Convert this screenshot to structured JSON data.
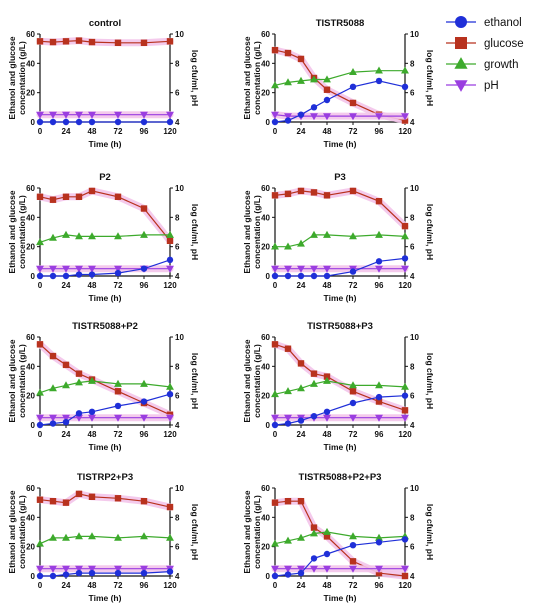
{
  "colors": {
    "ethanol": "#1f2fd8",
    "glucose": "#b8321e",
    "growth": "#3daa2c",
    "pH": "#9a3ee0",
    "error_band": "#f3c4ea"
  },
  "legend": {
    "items": [
      {
        "label": "ethanol",
        "marker": "circle",
        "color": "#1f2fd8"
      },
      {
        "label": "glucose",
        "marker": "square",
        "color": "#b8321e"
      },
      {
        "label": "growth",
        "marker": "triangle-up",
        "color": "#3daa2c"
      },
      {
        "label": "pH",
        "marker": "triangle-down",
        "color": "#9a3ee0"
      }
    ]
  },
  "chart_data": [
    {
      "type": "line",
      "title": "control",
      "xlabel": "Time (h)",
      "ylabel": "Ethanol and glucose concentation (g/L)",
      "y2label": "log cfu/ml, pH",
      "x": [
        0,
        12,
        24,
        36,
        48,
        72,
        96,
        120
      ],
      "xticks": [
        0,
        24,
        48,
        72,
        96,
        120
      ],
      "xlim": [
        0,
        120
      ],
      "yticks": [
        0,
        20,
        40,
        60
      ],
      "ylim": [
        0,
        60
      ],
      "y2ticks": [
        4,
        6,
        8,
        10
      ],
      "y2lim": [
        4,
        10
      ],
      "series": [
        {
          "name": "ethanol",
          "axis": "left",
          "values": [
            0,
            0,
            0,
            0,
            0,
            0,
            0,
            0
          ]
        },
        {
          "name": "glucose",
          "axis": "left",
          "values": [
            55,
            54.5,
            55,
            55.5,
            54.5,
            54,
            54,
            55
          ]
        },
        {
          "name": "growth",
          "axis": "right",
          "values": [
            null,
            null,
            null,
            null,
            null,
            null,
            null,
            null
          ]
        },
        {
          "name": "pH",
          "axis": "right",
          "values": [
            4.5,
            4.5,
            4.5,
            4.5,
            4.5,
            4.5,
            4.5,
            4.5
          ]
        }
      ]
    },
    {
      "type": "line",
      "title": "TISTR5088",
      "xlabel": "Time (h)",
      "ylabel": "Ethanol and glucose concentation (g/L)",
      "y2label": "log cfu/ml, pH",
      "x": [
        0,
        12,
        24,
        36,
        48,
        72,
        96,
        120
      ],
      "xticks": [
        0,
        24,
        48,
        72,
        96,
        120
      ],
      "xlim": [
        0,
        120
      ],
      "yticks": [
        0,
        20,
        40,
        60
      ],
      "ylim": [
        0,
        60
      ],
      "y2ticks": [
        4,
        6,
        8,
        10
      ],
      "y2lim": [
        4,
        10
      ],
      "series": [
        {
          "name": "ethanol",
          "axis": "left",
          "values": [
            0,
            1,
            5,
            10,
            15,
            24,
            28,
            24
          ]
        },
        {
          "name": "glucose",
          "axis": "left",
          "values": [
            49,
            47,
            43,
            30,
            22,
            13,
            5,
            1
          ]
        },
        {
          "name": "growth",
          "axis": "right",
          "values": [
            6.5,
            6.7,
            6.8,
            6.9,
            6.9,
            7.4,
            7.5,
            7.5
          ]
        },
        {
          "name": "pH",
          "axis": "right",
          "values": [
            4.5,
            4.4,
            4.4,
            4.4,
            4.4,
            4.4,
            4.4,
            4.4
          ]
        }
      ]
    },
    {
      "type": "line",
      "title": "P2",
      "xlabel": "Time (h)",
      "ylabel": "Ethanol and glucose concentation (g/L)",
      "y2label": "log cfu/ml, pH",
      "x": [
        0,
        12,
        24,
        36,
        48,
        72,
        96,
        120
      ],
      "xticks": [
        0,
        24,
        48,
        72,
        96,
        120
      ],
      "xlim": [
        0,
        120
      ],
      "yticks": [
        0,
        20,
        40,
        60
      ],
      "ylim": [
        0,
        60
      ],
      "y2ticks": [
        4,
        6,
        8,
        10
      ],
      "y2lim": [
        4,
        10
      ],
      "series": [
        {
          "name": "ethanol",
          "axis": "left",
          "values": [
            0,
            0,
            0,
            1,
            1,
            2,
            5,
            11
          ]
        },
        {
          "name": "glucose",
          "axis": "left",
          "values": [
            54,
            52,
            54,
            54,
            58,
            54,
            46,
            24
          ]
        },
        {
          "name": "growth",
          "axis": "right",
          "values": [
            6.3,
            6.6,
            6.8,
            6.7,
            6.7,
            6.7,
            6.8,
            6.8
          ]
        },
        {
          "name": "pH",
          "axis": "right",
          "values": [
            4.5,
            4.5,
            4.5,
            4.5,
            4.5,
            4.5,
            4.5,
            4.5
          ]
        }
      ]
    },
    {
      "type": "line",
      "title": "P3",
      "xlabel": "Time (h)",
      "ylabel": "Ethanol and glucose concentation (g/L)",
      "y2label": "log cfu/ml, pH",
      "x": [
        0,
        12,
        24,
        36,
        48,
        72,
        96,
        120
      ],
      "xticks": [
        0,
        24,
        48,
        72,
        96,
        120
      ],
      "xlim": [
        0,
        120
      ],
      "yticks": [
        0,
        20,
        40,
        60
      ],
      "ylim": [
        0,
        60
      ],
      "y2ticks": [
        4,
        6,
        8,
        10
      ],
      "y2lim": [
        4,
        10
      ],
      "series": [
        {
          "name": "ethanol",
          "axis": "left",
          "values": [
            0,
            0,
            0,
            0,
            0,
            3,
            10,
            12
          ]
        },
        {
          "name": "glucose",
          "axis": "left",
          "values": [
            55,
            56,
            58,
            57,
            55,
            58,
            51,
            34
          ]
        },
        {
          "name": "growth",
          "axis": "right",
          "values": [
            6.0,
            6.0,
            6.2,
            6.8,
            6.8,
            6.7,
            6.8,
            6.7
          ]
        },
        {
          "name": "pH",
          "axis": "right",
          "values": [
            4.5,
            4.5,
            4.5,
            4.5,
            4.5,
            4.5,
            4.5,
            4.5
          ]
        }
      ]
    },
    {
      "type": "line",
      "title": "TISTR5088+P2",
      "xlabel": "Time (h)",
      "ylabel": "Ethanol and glucose concentation (g/L)",
      "y2label": "log cfu/ml, pH",
      "x": [
        0,
        12,
        24,
        36,
        48,
        72,
        96,
        120
      ],
      "xticks": [
        0,
        24,
        48,
        72,
        96,
        120
      ],
      "xlim": [
        0,
        120
      ],
      "yticks": [
        0,
        20,
        40,
        60
      ],
      "ylim": [
        0,
        60
      ],
      "y2ticks": [
        4,
        6,
        8,
        10
      ],
      "y2lim": [
        4,
        10
      ],
      "series": [
        {
          "name": "ethanol",
          "axis": "left",
          "values": [
            0,
            1,
            2,
            8,
            9,
            13,
            16,
            21
          ]
        },
        {
          "name": "glucose",
          "axis": "left",
          "values": [
            55,
            47,
            41,
            35,
            31,
            23,
            15,
            7
          ]
        },
        {
          "name": "growth",
          "axis": "right",
          "values": [
            6.2,
            6.5,
            6.7,
            6.9,
            7.0,
            6.8,
            6.8,
            6.6
          ]
        },
        {
          "name": "pH",
          "axis": "right",
          "values": [
            4.5,
            4.5,
            4.5,
            4.5,
            4.5,
            4.5,
            4.5,
            4.5
          ]
        }
      ]
    },
    {
      "type": "line",
      "title": "TISTR5088+P3",
      "xlabel": "Time (h)",
      "ylabel": "Ethanol and glucose concentation (g/L)",
      "y2label": "log cfu/ml, pH",
      "x": [
        0,
        12,
        24,
        36,
        48,
        72,
        96,
        120
      ],
      "xticks": [
        0,
        24,
        48,
        72,
        96,
        120
      ],
      "xlim": [
        0,
        120
      ],
      "yticks": [
        0,
        20,
        40,
        60
      ],
      "ylim": [
        0,
        60
      ],
      "y2ticks": [
        4,
        6,
        8,
        10
      ],
      "y2lim": [
        4,
        10
      ],
      "series": [
        {
          "name": "ethanol",
          "axis": "left",
          "values": [
            0,
            1,
            3,
            6,
            9,
            15,
            19,
            20
          ]
        },
        {
          "name": "glucose",
          "axis": "left",
          "values": [
            55,
            52,
            42,
            35,
            33,
            23,
            16,
            10
          ]
        },
        {
          "name": "growth",
          "axis": "right",
          "values": [
            6.1,
            6.3,
            6.5,
            6.8,
            7.0,
            6.7,
            6.7,
            6.6
          ]
        },
        {
          "name": "pH",
          "axis": "right",
          "values": [
            4.5,
            4.5,
            4.5,
            4.5,
            4.5,
            4.5,
            4.5,
            4.5
          ]
        }
      ]
    },
    {
      "type": "line",
      "title": "TISTRP2+P3",
      "xlabel": "Time (h)",
      "ylabel": "Ethanol and glucose concentation (g/L)",
      "y2label": "log cfu/ml, pH",
      "x": [
        0,
        12,
        24,
        36,
        48,
        72,
        96,
        120
      ],
      "xticks": [
        0,
        24,
        48,
        72,
        96,
        120
      ],
      "xlim": [
        0,
        120
      ],
      "yticks": [
        0,
        20,
        40,
        60
      ],
      "ylim": [
        0,
        60
      ],
      "y2ticks": [
        4,
        6,
        8,
        10
      ],
      "y2lim": [
        4,
        10
      ],
      "series": [
        {
          "name": "ethanol",
          "axis": "left",
          "values": [
            0,
            0,
            1,
            2,
            2,
            2,
            2,
            3
          ]
        },
        {
          "name": "glucose",
          "axis": "left",
          "values": [
            52,
            51,
            50,
            56,
            54,
            53,
            51,
            47
          ]
        },
        {
          "name": "growth",
          "axis": "right",
          "values": [
            6.2,
            6.6,
            6.6,
            6.7,
            6.7,
            6.6,
            6.7,
            6.6
          ]
        },
        {
          "name": "pH",
          "axis": "right",
          "values": [
            4.5,
            4.5,
            4.5,
            4.5,
            4.5,
            4.5,
            4.5,
            4.5
          ]
        }
      ]
    },
    {
      "type": "line",
      "title": "TISTR5088+P2+P3",
      "xlabel": "Time (h)",
      "ylabel": "Ethanol and glucose concentation (g/L)",
      "y2label": "log cfu/ml, pH",
      "x": [
        0,
        12,
        24,
        36,
        48,
        72,
        96,
        120
      ],
      "xticks": [
        0,
        24,
        48,
        72,
        96,
        120
      ],
      "xlim": [
        0,
        120
      ],
      "yticks": [
        0,
        20,
        40,
        60
      ],
      "ylim": [
        0,
        60
      ],
      "y2ticks": [
        4,
        6,
        8,
        10
      ],
      "y2lim": [
        4,
        10
      ],
      "series": [
        {
          "name": "ethanol",
          "axis": "left",
          "values": [
            0,
            1,
            2,
            12,
            15,
            21,
            23,
            25
          ]
        },
        {
          "name": "glucose",
          "axis": "left",
          "values": [
            50,
            51,
            51,
            33,
            27,
            10,
            2,
            0
          ]
        },
        {
          "name": "growth",
          "axis": "right",
          "values": [
            6.2,
            6.4,
            6.6,
            6.9,
            7.0,
            6.7,
            6.6,
            6.7
          ]
        },
        {
          "name": "pH",
          "axis": "right",
          "values": [
            4.5,
            4.5,
            4.5,
            4.5,
            4.5,
            4.5,
            4.5,
            4.5
          ]
        }
      ]
    }
  ]
}
